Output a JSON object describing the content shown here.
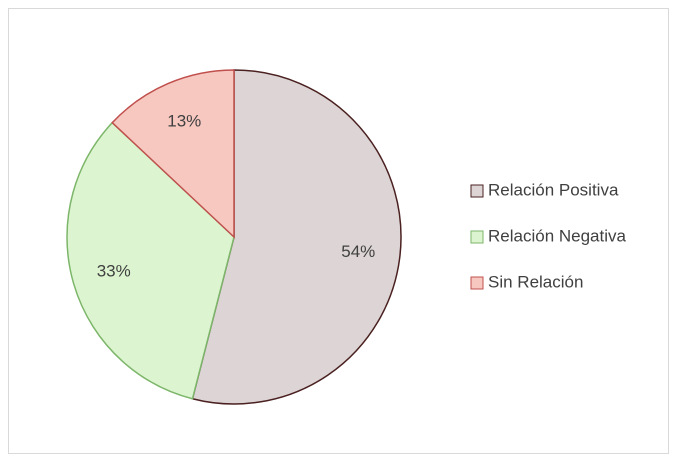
{
  "chart_data": {
    "type": "pie",
    "categories": [
      "Relación Positiva",
      "Relación Negativa",
      "Sin Relación"
    ],
    "values": [
      54,
      33,
      13
    ],
    "value_labels": [
      "54%",
      "33%",
      "13%"
    ],
    "colors": [
      "#ddd5d5",
      "#dcf5d0",
      "#f7c8c0"
    ],
    "edge_colors": [
      "#4a2020",
      "#7db66a",
      "#c0504d"
    ],
    "legend": "right"
  }
}
